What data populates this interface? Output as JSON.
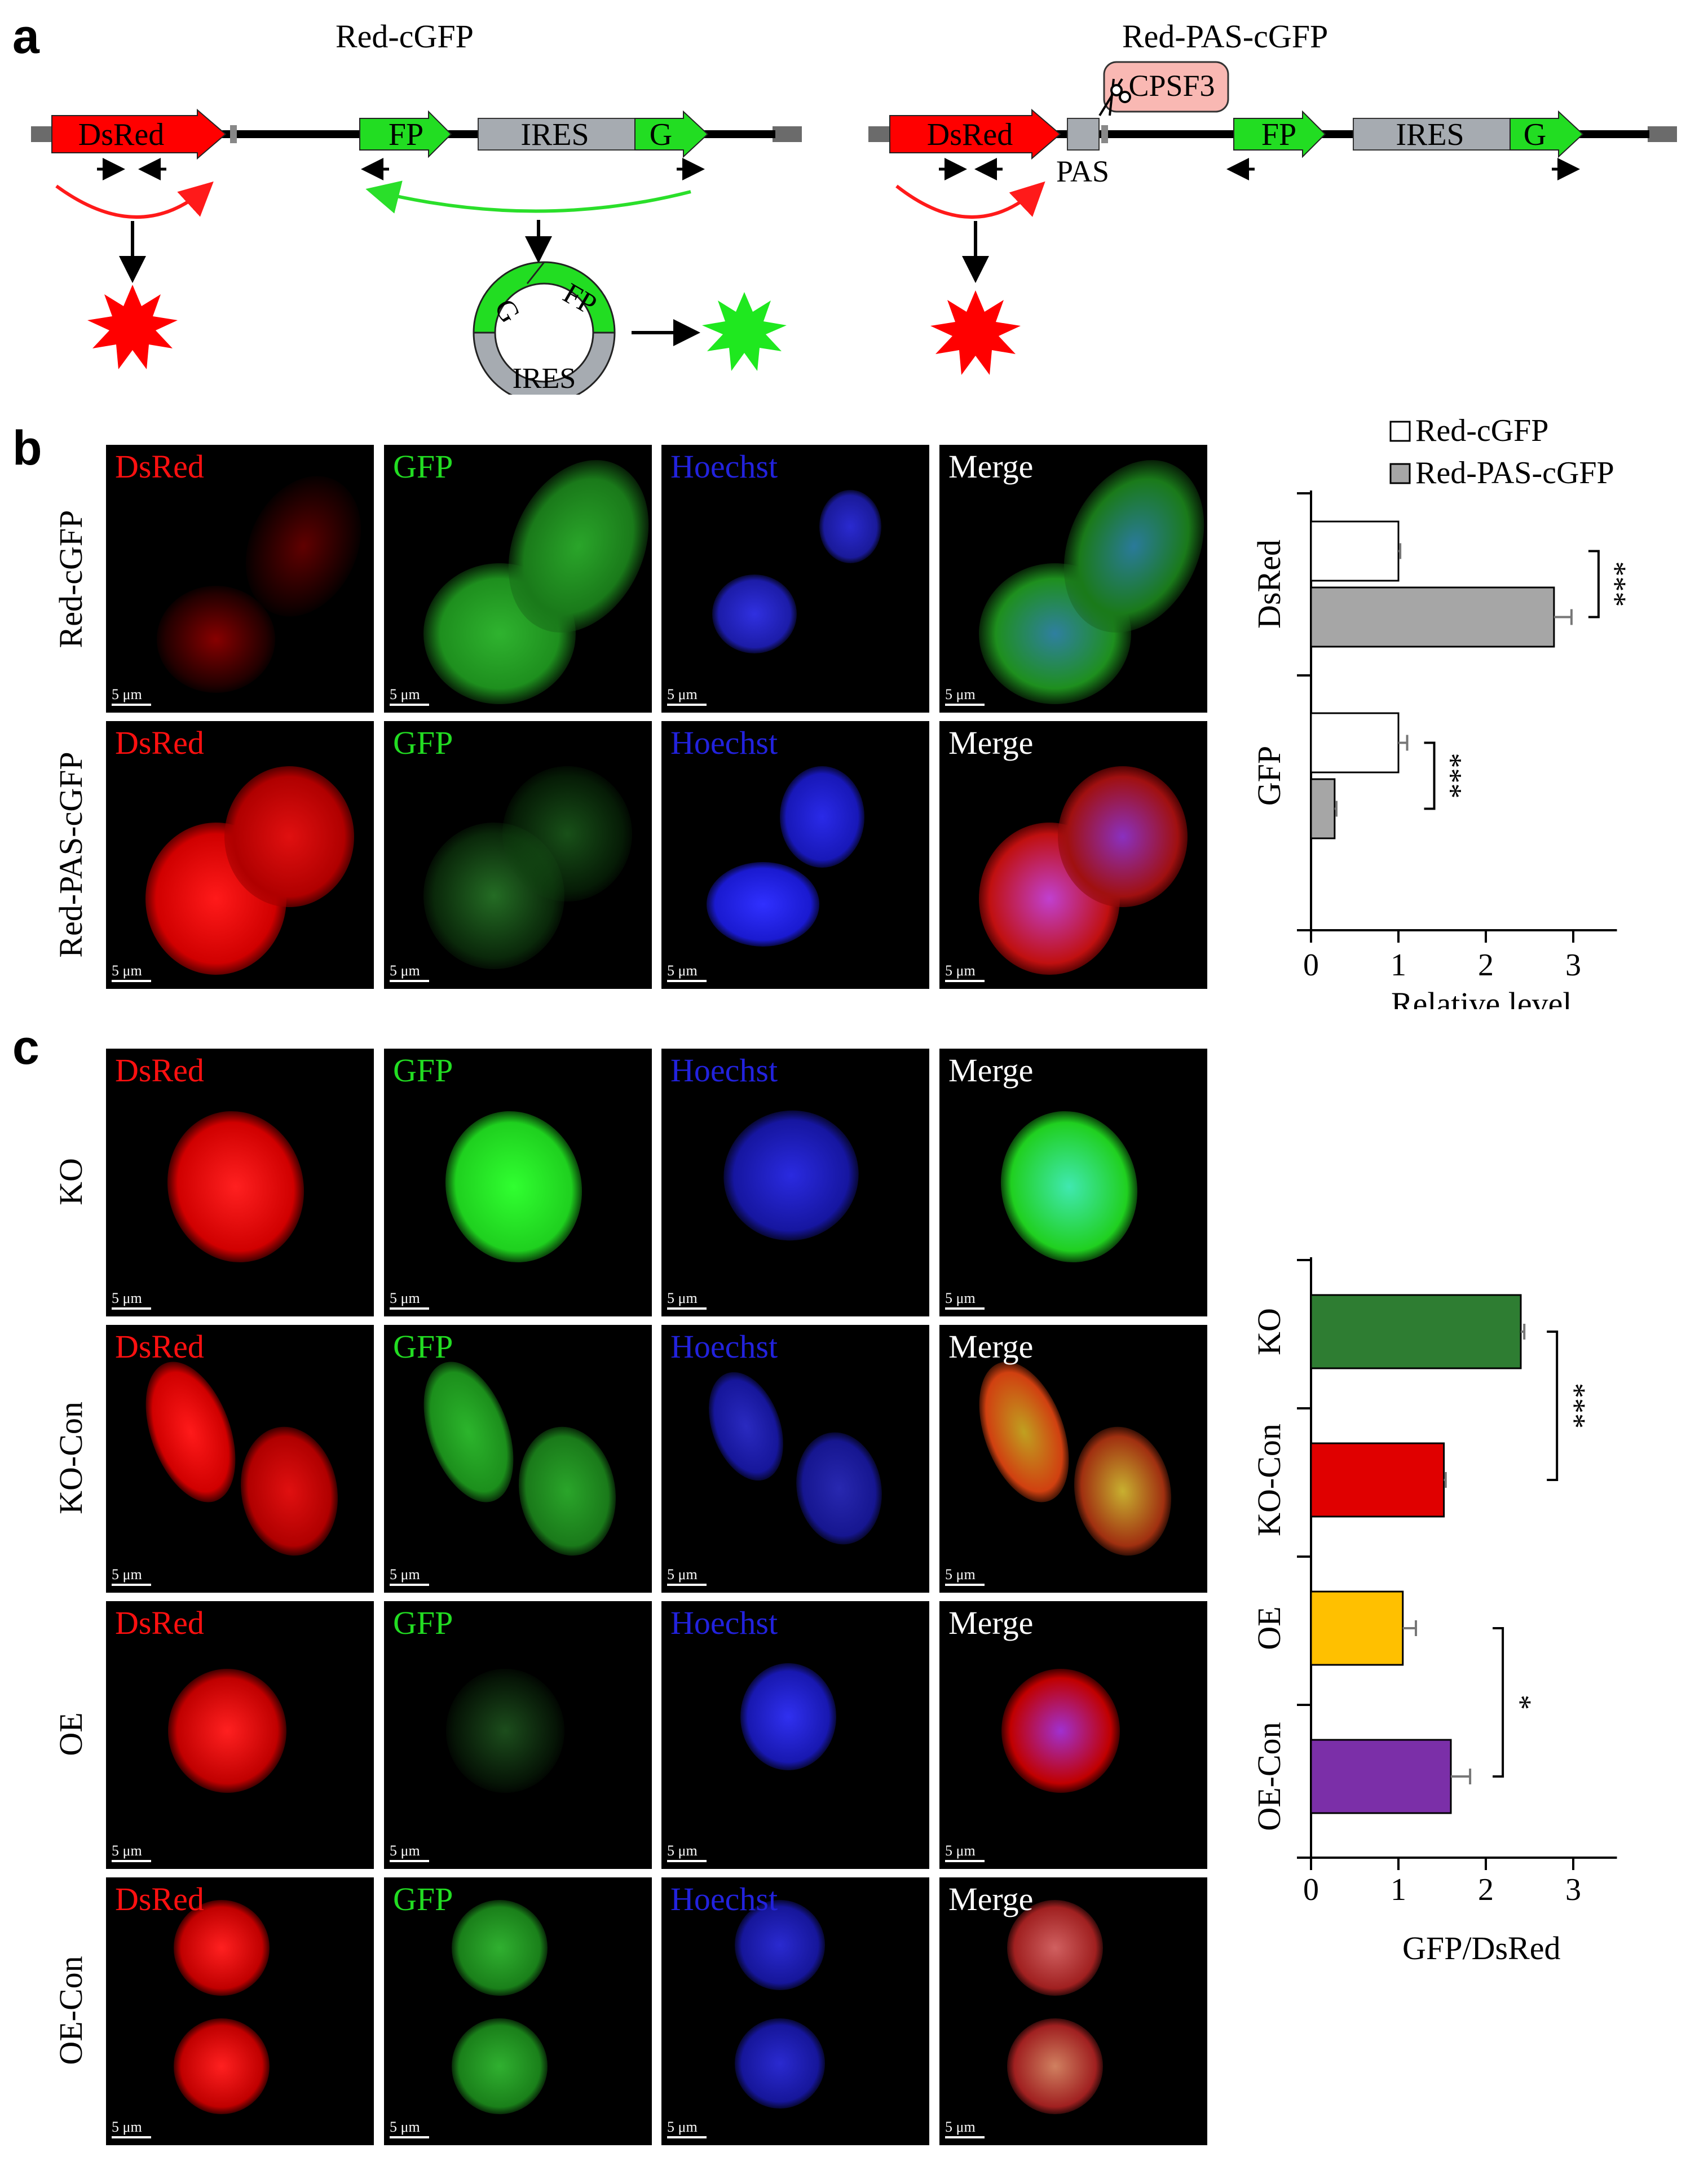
{
  "panel_a": {
    "letter": "a",
    "left_title": "Red-cGFP",
    "right_title": "Red-PAS-cGFP",
    "seg_dsred": "DsRed",
    "seg_fp": "FP",
    "seg_ires": "IRES",
    "seg_g": "G",
    "pas": "PAS",
    "cpsf3": "CPSF3",
    "circ_g": "G",
    "circ_fp": "FP",
    "circ_ires": "IRES"
  },
  "panel_b": {
    "letter": "b",
    "channels": [
      "DsRed",
      "GFP",
      "Hoechst",
      "Merge"
    ],
    "rows": [
      "Red-cGFP",
      "Red-PAS-cGFP"
    ],
    "scale_label": "5 μm"
  },
  "panel_c": {
    "letter": "c",
    "channels": [
      "DsRed",
      "GFP",
      "Hoechst",
      "Merge"
    ],
    "rows": [
      "KO",
      "KO-Con",
      "OE",
      "OE-Con"
    ],
    "scale_label": "5 μm"
  },
  "colors": {
    "dsred": "#ff0000",
    "gfp": "#22dd22",
    "hoechst": "#2222dd",
    "ires": "#a6abb1",
    "cpsf3": "#f9b8b3",
    "ko": "#2e7d32",
    "ko_con": "#e00000",
    "oe": "#ffc000",
    "oe_con": "#7b2fa8"
  },
  "chart_data": [
    {
      "type": "bar",
      "orientation": "horizontal",
      "categories": [
        "DsRed",
        "GFP"
      ],
      "series": [
        {
          "name": "Red-cGFP",
          "values": [
            1.0,
            1.0
          ],
          "errors": [
            0.02,
            0.1
          ],
          "color": "#ffffff"
        },
        {
          "name": "Red-PAS-cGFP",
          "values": [
            2.78,
            0.27
          ],
          "errors": [
            0.2,
            0.02
          ],
          "color": "#a6a6a6"
        }
      ],
      "xlabel": "Relative level",
      "xlim": [
        0,
        3.5
      ],
      "xticks": [
        "0",
        "1",
        "2",
        "3"
      ],
      "significance": [
        "***",
        "***"
      ],
      "legend": "top-right"
    },
    {
      "type": "bar",
      "orientation": "horizontal",
      "categories": [
        "KO",
        "KO-Con",
        "OE",
        "OE-Con"
      ],
      "values": [
        2.4,
        1.52,
        1.05,
        1.6
      ],
      "errors": [
        0.04,
        0.02,
        0.15,
        0.22
      ],
      "colors": [
        "#2e7d32",
        "#e00000",
        "#ffc000",
        "#7b2fa8"
      ],
      "xlabel": "GFP/DsRed",
      "xlim": [
        0,
        3.5
      ],
      "xticks": [
        "0",
        "1",
        "2",
        "3"
      ],
      "significance": [
        "***",
        "*"
      ]
    }
  ]
}
